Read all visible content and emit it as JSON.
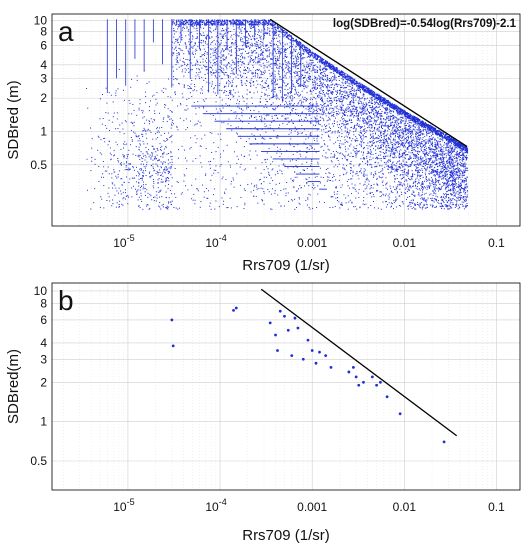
{
  "chart_data": [
    {
      "type": "scatter",
      "panel_label": "a",
      "title": "",
      "xlabel": "Rrs709 (1/sr)",
      "ylabel": "SDBred (m)",
      "x_scale": "log",
      "y_scale": "log",
      "xlim": [
        1.5e-06,
        0.18
      ],
      "ylim": [
        0.14,
        11.5
      ],
      "x_ticks": [
        {
          "value": 1e-05,
          "base": "10",
          "exp": "-5"
        },
        {
          "value": 0.0001,
          "base": "10",
          "exp": "-4"
        },
        {
          "value": 0.001,
          "label": "0.001"
        },
        {
          "value": 0.01,
          "label": "0.01"
        },
        {
          "value": 0.1,
          "label": "0.1"
        }
      ],
      "y_ticks": [
        {
          "value": 10,
          "label": "10"
        },
        {
          "value": 8,
          "label": "8"
        },
        {
          "value": 6,
          "label": "6"
        },
        {
          "value": 4,
          "label": "4"
        },
        {
          "value": 3,
          "label": "3"
        },
        {
          "value": 2,
          "label": "2"
        },
        {
          "value": 1,
          "label": "1"
        },
        {
          "value": 0.5,
          "label": "0.5"
        }
      ],
      "grid": true,
      "point_color": "#1f2fd6",
      "line_color": "#000000",
      "annotation": "log(SDBred)=-0.54log(Rrs709)-2.1",
      "fit_line": {
        "x": [
          0.00035,
          0.048
        ],
        "y": [
          10.3,
          0.73
        ]
      },
      "points_note": "dense cloud of roughly 20,000 samples",
      "point_cloud": {
        "upper_envelope": [
          [
            1.5e-06,
            10.3
          ],
          [
            0.00035,
            10.3
          ],
          [
            0.001,
            5.3
          ],
          [
            0.003,
            2.9
          ],
          [
            0.01,
            1.55
          ],
          [
            0.03,
            0.92
          ],
          [
            0.048,
            0.73
          ]
        ],
        "mode": [
          [
            3e-05,
            8.3
          ],
          [
            0.0001,
            7.5
          ],
          [
            0.0003,
            6.0
          ],
          [
            0.001,
            3.8
          ],
          [
            0.003,
            2.3
          ],
          [
            0.01,
            1.2
          ],
          [
            0.03,
            0.7
          ]
        ],
        "lower_limit": 0.2
      }
    },
    {
      "type": "scatter",
      "panel_label": "b",
      "title": "",
      "xlabel": "Rrs709 (1/sr)",
      "ylabel": "SDBred(m)",
      "x_scale": "log",
      "y_scale": "log",
      "xlim": [
        1.5e-06,
        0.18
      ],
      "ylim": [
        0.3,
        11.5
      ],
      "x_ticks": [
        {
          "value": 1e-05,
          "base": "10",
          "exp": "-5"
        },
        {
          "value": 0.0001,
          "base": "10",
          "exp": "-4"
        },
        {
          "value": 0.001,
          "label": "0.001"
        },
        {
          "value": 0.01,
          "label": "0.01"
        },
        {
          "value": 0.1,
          "label": "0.1"
        }
      ],
      "y_ticks": [
        {
          "value": 10,
          "label": "10"
        },
        {
          "value": 8,
          "label": "8"
        },
        {
          "value": 6,
          "label": "6"
        },
        {
          "value": 4,
          "label": "4"
        },
        {
          "value": 3,
          "label": "3"
        },
        {
          "value": 2,
          "label": "2"
        },
        {
          "value": 1,
          "label": "1"
        },
        {
          "value": 0.5,
          "label": "0.5"
        }
      ],
      "grid": true,
      "point_color": "#1f2fd6",
      "line_color": "#000000",
      "fit_line": {
        "x": [
          0.00028,
          0.037
        ],
        "y": [
          10.3,
          0.78
        ]
      },
      "points": [
        [
          3e-05,
          6.0
        ],
        [
          3.1e-05,
          3.8
        ],
        [
          0.00014,
          7.1
        ],
        [
          0.00015,
          7.4
        ],
        [
          0.00035,
          5.7
        ],
        [
          0.0004,
          4.6
        ],
        [
          0.00042,
          3.5
        ],
        [
          0.00045,
          7.0
        ],
        [
          0.0005,
          6.4
        ],
        [
          0.00055,
          5.0
        ],
        [
          0.0006,
          3.2
        ],
        [
          0.00065,
          6.2
        ],
        [
          0.0007,
          5.2
        ],
        [
          0.0008,
          3.0
        ],
        [
          0.0009,
          4.2
        ],
        [
          0.001,
          3.5
        ],
        [
          0.0011,
          2.8
        ],
        [
          0.0012,
          3.4
        ],
        [
          0.0014,
          3.2
        ],
        [
          0.0016,
          2.6
        ],
        [
          0.0025,
          2.4
        ],
        [
          0.0028,
          2.6
        ],
        [
          0.003,
          2.2
        ],
        [
          0.0032,
          1.9
        ],
        [
          0.0036,
          2.0
        ],
        [
          0.0045,
          2.2
        ],
        [
          0.005,
          1.9
        ],
        [
          0.0055,
          2.0
        ],
        [
          0.0065,
          1.55
        ],
        [
          0.009,
          1.15
        ],
        [
          0.027,
          0.7
        ]
      ]
    }
  ]
}
